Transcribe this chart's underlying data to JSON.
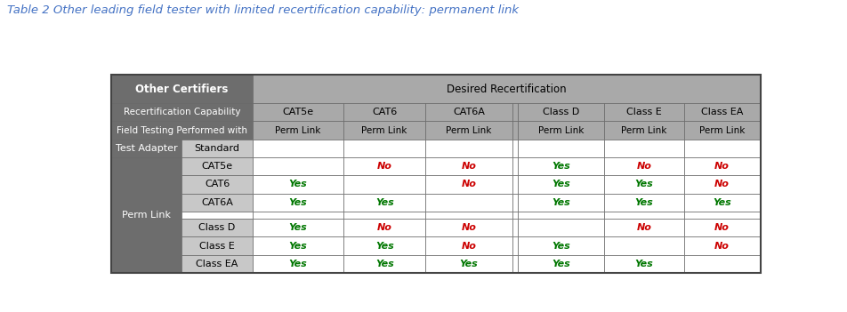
{
  "title": "Table 2 Other leading field tester with limited recertification capability: permanent link",
  "title_color": "#4472C4",
  "title_fontsize": 9.5,
  "bg_color": "#FFFFFF",
  "header_dark": "#6D6D6D",
  "header_light": "#A9A9A9",
  "cell_light": "#C8C8C8",
  "cell_white": "#FFFFFF",
  "green": "#007700",
  "red": "#CC0000",
  "col_headers": [
    "CAT5e",
    "CAT6",
    "CAT6A",
    "",
    "Class D",
    "Class E",
    "Class EA"
  ],
  "sub_row_labels": [
    "Standard",
    "CAT5e",
    "CAT6",
    "CAT6A",
    "",
    "Class D",
    "Class E",
    "Class EA"
  ],
  "table_vals": [
    [
      null,
      null,
      null,
      null,
      null,
      null
    ],
    [
      null,
      false,
      false,
      true,
      false,
      false
    ],
    [
      true,
      null,
      false,
      true,
      true,
      false
    ],
    [
      true,
      true,
      null,
      true,
      true,
      true
    ],
    [
      null,
      null,
      null,
      null,
      null,
      null
    ],
    [
      true,
      false,
      false,
      null,
      false,
      false
    ],
    [
      true,
      true,
      false,
      true,
      null,
      false
    ],
    [
      true,
      true,
      true,
      true,
      true,
      null
    ]
  ]
}
